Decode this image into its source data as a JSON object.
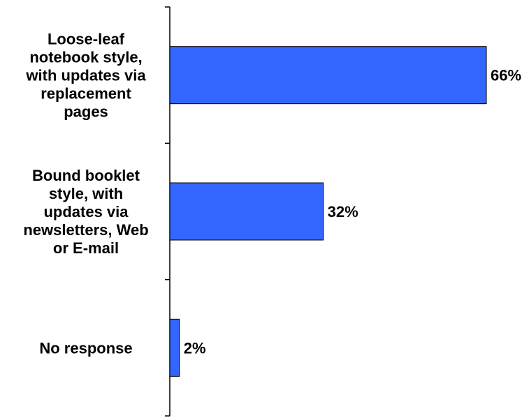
{
  "chart_data": {
    "type": "bar",
    "orientation": "horizontal",
    "categories": [
      "Loose-leaf notebook style, with updates via replacement pages",
      "Bound booklet style, with updates via newsletters, Web or E-mail",
      "No response"
    ],
    "category_label_lines": [
      [
        "Loose-leaf",
        "notebook style,",
        "with updates via",
        "replacement",
        "pages"
      ],
      [
        "Bound booklet",
        "style, with",
        "updates via",
        "newsletters, Web",
        "or E-mail"
      ],
      [
        "No response"
      ]
    ],
    "values": [
      66,
      32,
      2
    ],
    "data_labels": [
      "66%",
      "32%",
      "2%"
    ],
    "xlim": [
      0,
      100
    ],
    "grid": false,
    "legend": "none",
    "bar_color": "#3366ff",
    "bar_edge_color": "#000000"
  }
}
